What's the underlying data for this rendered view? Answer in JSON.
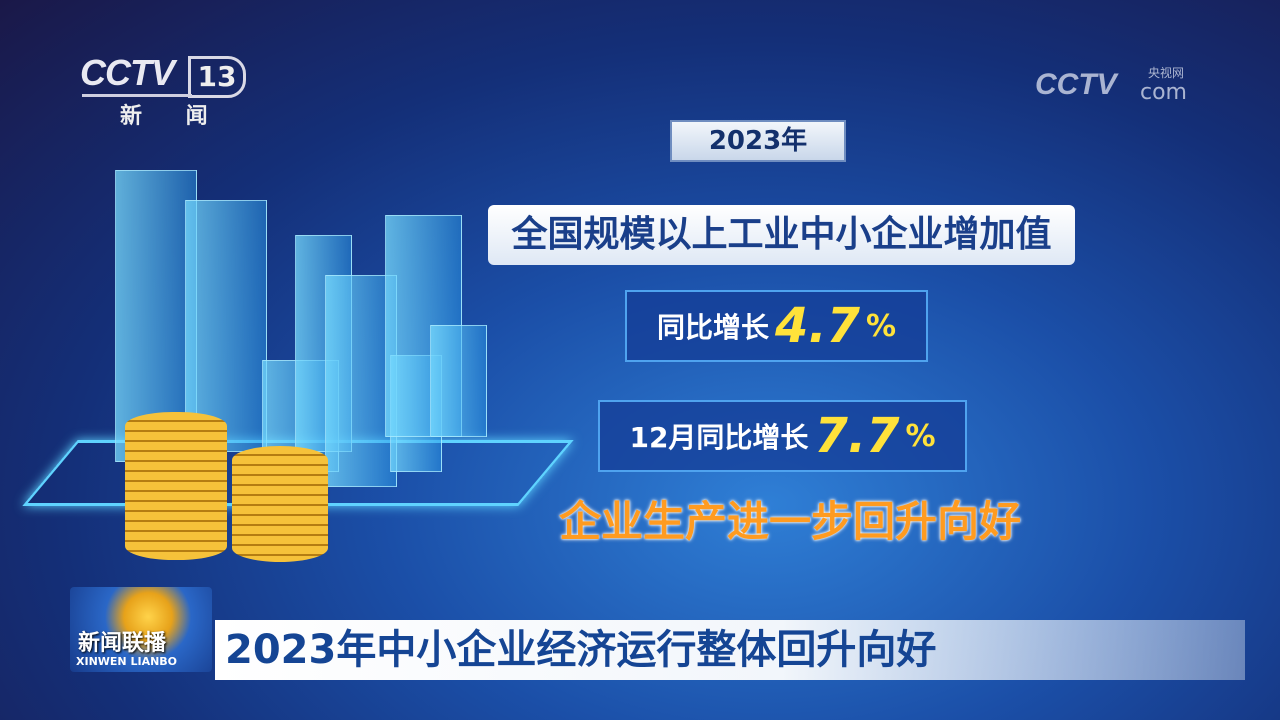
{
  "channel_logo": {
    "brand": "CCTV",
    "channel_number": "13",
    "channel_name": "新 闻"
  },
  "watermark": {
    "brand": "CCTV",
    "site_cn": "央视网",
    "site_suffix": "com"
  },
  "graphic": {
    "year": "2023年",
    "title": "全国规模以上工业中小企业增加值",
    "stats": [
      {
        "label": "同比增长",
        "value": "4.7",
        "unit": "%"
      },
      {
        "label": "12月同比增长",
        "value": "7.7",
        "unit": "%"
      }
    ],
    "slogan": "企业生产进一步回升向好"
  },
  "program_logo": {
    "name_cn": "新闻联播",
    "name_en": "XINWEN LIANBO"
  },
  "headline": "2023年中小企业经济运行整体回升向好",
  "colors": {
    "accent_yellow": "#ffe23a",
    "slogan_orange": "#ff9b20",
    "headline_blue": "#154594"
  }
}
